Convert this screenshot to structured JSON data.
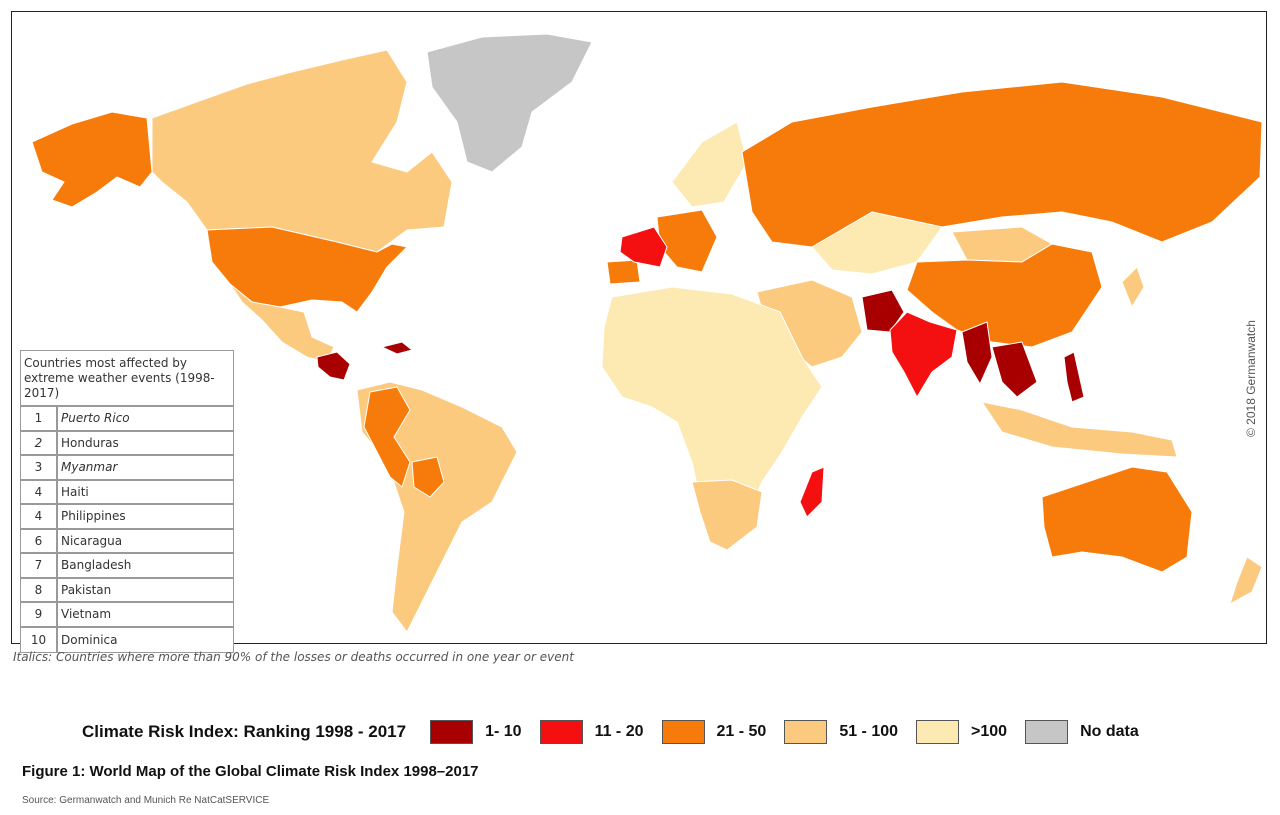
{
  "map": {
    "copyright": "© 2018 Germanwatch",
    "colors": {
      "rank_1_10": "#a80000",
      "rank_11_20": "#f41010",
      "rank_21_50": "#f77b0a",
      "rank_51_100": "#fbca7e",
      "rank_over_100": "#fde9b2",
      "no_data": "#c6c6c6",
      "border": "#ffffff",
      "ocean": "#ffffff"
    },
    "regions": [
      {
        "name": "Alaska",
        "category": "rank_21_50"
      },
      {
        "name": "Canada",
        "category": "rank_51_100"
      },
      {
        "name": "United States",
        "category": "rank_21_50"
      },
      {
        "name": "Mexico",
        "category": "rank_51_100"
      },
      {
        "name": "Honduras / Nicaragua",
        "category": "rank_1_10"
      },
      {
        "name": "Haiti / Puerto Rico / Dominica",
        "category": "rank_1_10"
      },
      {
        "name": "Greenland",
        "category": "no_data"
      },
      {
        "name": "South America",
        "category": "rank_51_100"
      },
      {
        "name": "Colombia / Peru",
        "category": "rank_21_50"
      },
      {
        "name": "Bolivia",
        "category": "rank_21_50"
      },
      {
        "name": "France",
        "category": "rank_11_20"
      },
      {
        "name": "Iberia / Central Europe",
        "category": "rank_21_50"
      },
      {
        "name": "Scandinavia",
        "category": "rank_over_100"
      },
      {
        "name": "Russia",
        "category": "rank_21_50"
      },
      {
        "name": "China",
        "category": "rank_21_50"
      },
      {
        "name": "Kazakhstan",
        "category": "rank_over_100"
      },
      {
        "name": "Mongolia",
        "category": "rank_51_100"
      },
      {
        "name": "Africa",
        "category": "rank_over_100"
      },
      {
        "name": "Madagascar",
        "category": "rank_11_20"
      },
      {
        "name": "Southern Africa",
        "category": "rank_51_100"
      },
      {
        "name": "Middle East",
        "category": "rank_51_100"
      },
      {
        "name": "Pakistan",
        "category": "rank_1_10"
      },
      {
        "name": "India",
        "category": "rank_11_20"
      },
      {
        "name": "Myanmar / Bangladesh",
        "category": "rank_1_10"
      },
      {
        "name": "Vietnam / Thailand",
        "category": "rank_1_10"
      },
      {
        "name": "Philippines",
        "category": "rank_1_10"
      },
      {
        "name": "Indonesia",
        "category": "rank_51_100"
      },
      {
        "name": "Australia",
        "category": "rank_21_50"
      },
      {
        "name": "New Zealand",
        "category": "rank_51_100"
      },
      {
        "name": "Japan",
        "category": "rank_51_100"
      }
    ]
  },
  "ranking_table": {
    "title": "Countries most affected by extreme weather events (1998-2017)",
    "rows": [
      {
        "rank": "1",
        "country": "Puerto Rico",
        "italic": true,
        "rank_italic": false
      },
      {
        "rank": "2",
        "country": "Honduras",
        "italic": false,
        "rank_italic": true
      },
      {
        "rank": "3",
        "country": "Myanmar",
        "italic": true,
        "rank_italic": false
      },
      {
        "rank": "4",
        "country": "Haiti",
        "italic": false,
        "rank_italic": false
      },
      {
        "rank": "4",
        "country": "Philippines",
        "italic": false,
        "rank_italic": false
      },
      {
        "rank": "6",
        "country": "Nicaragua",
        "italic": false,
        "rank_italic": false
      },
      {
        "rank": "7",
        "country": "Bangladesh",
        "italic": false,
        "rank_italic": false
      },
      {
        "rank": "8",
        "country": "Pakistan",
        "italic": false,
        "rank_italic": false
      },
      {
        "rank": "9",
        "country": "Vietnam",
        "italic": false,
        "rank_italic": false
      },
      {
        "rank": "10",
        "country": "Dominica",
        "italic": false,
        "rank_italic": false
      }
    ]
  },
  "italics_note": "Italics: Countries where more than 90% of the losses or deaths occurred in one year or event",
  "legend": {
    "title": "Climate Risk Index: Ranking 1998 - 2017",
    "items": [
      {
        "label": "1- 10",
        "color": "#a80000"
      },
      {
        "label": "11 - 20",
        "color": "#f41010"
      },
      {
        "label": "21 - 50",
        "color": "#f77b0a"
      },
      {
        "label": "51 - 100",
        "color": "#fbca7e"
      },
      {
        "label": ">100",
        "color": "#fde9b2"
      },
      {
        "label": "No data",
        "color": "#c6c6c6"
      }
    ]
  },
  "figure_title": "Figure 1: World Map of the Global Climate Risk Index 1998–2017",
  "source": "Source: Germanwatch and Munich Re NatCatSERVICE"
}
